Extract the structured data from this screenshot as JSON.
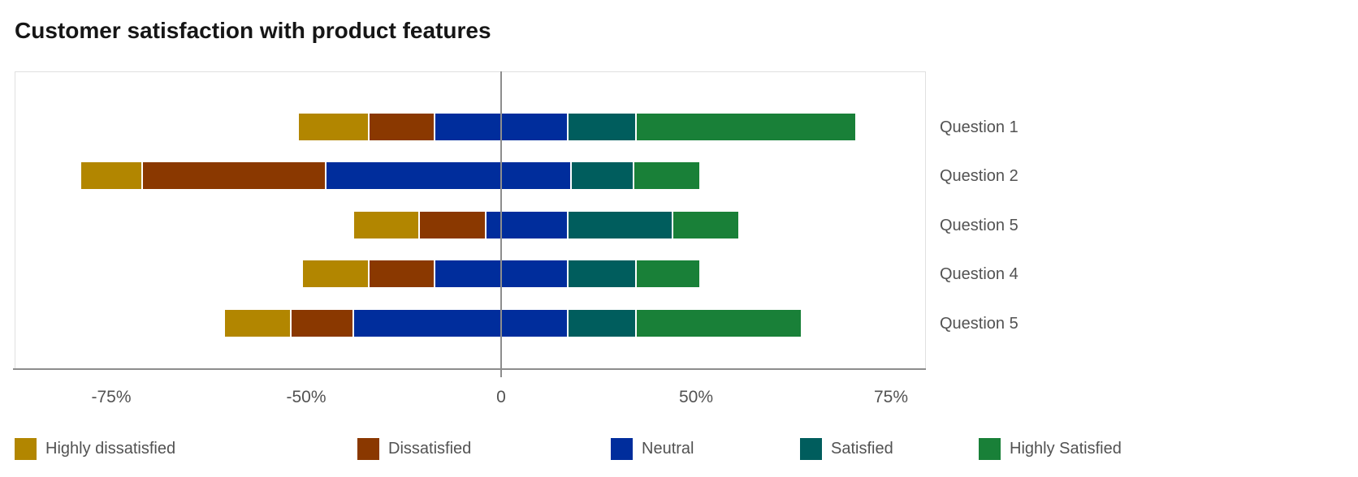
{
  "chart_data": {
    "type": "bar",
    "subtype": "diverging-stacked-horizontal",
    "title": "Customer satisfaction with product features",
    "x_axis": {
      "tick_labels": [
        "-75%",
        "-50%",
        "0",
        "50%",
        "75%"
      ],
      "tick_values": [
        -75,
        -50,
        0,
        50,
        75
      ],
      "ticks_equally_spaced": true,
      "zero_line": true,
      "grid": false
    },
    "legend_position": "bottom",
    "series": [
      {
        "name": "Highly dissatisfied",
        "color": "#b28600"
      },
      {
        "name": "Dissatisfied",
        "color": "#8a3800"
      },
      {
        "name": "Neutral",
        "color": "#002d9c"
      },
      {
        "name": "Satisfied",
        "color": "#005d5d"
      },
      {
        "name": "Highly Satisfied",
        "color": "#198038"
      }
    ],
    "boundaries_note": "Each row lists 6 cumulative x-axis positions (in axis % units); series k spans boundaries[k] to boundaries[k+1]. Negative = dissatisfied side of the zero line.",
    "rows": [
      {
        "label": "Question 1",
        "boundaries": [
          -51,
          -34,
          -17,
          17,
          34.5,
          70.5
        ]
      },
      {
        "label": "Question 2",
        "boundaries": [
          -79,
          -71,
          -45,
          18,
          34,
          50.5
        ]
      },
      {
        "label": "Question 5",
        "boundaries": [
          -38,
          -21,
          -4,
          17,
          44,
          55.5
        ]
      },
      {
        "label": "Question 4",
        "boundaries": [
          -50.5,
          -34,
          -17,
          17,
          34.5,
          50.5
        ]
      },
      {
        "label": "Question 5",
        "boundaries": [
          -60.5,
          -52,
          -38,
          17,
          34.5,
          63.5
        ]
      }
    ]
  },
  "colors": {
    "axis_line": "#8d8d8d",
    "plot_border": "#e0e0e0",
    "label_text": "#525252",
    "title_text": "#161616",
    "background": "#ffffff"
  }
}
